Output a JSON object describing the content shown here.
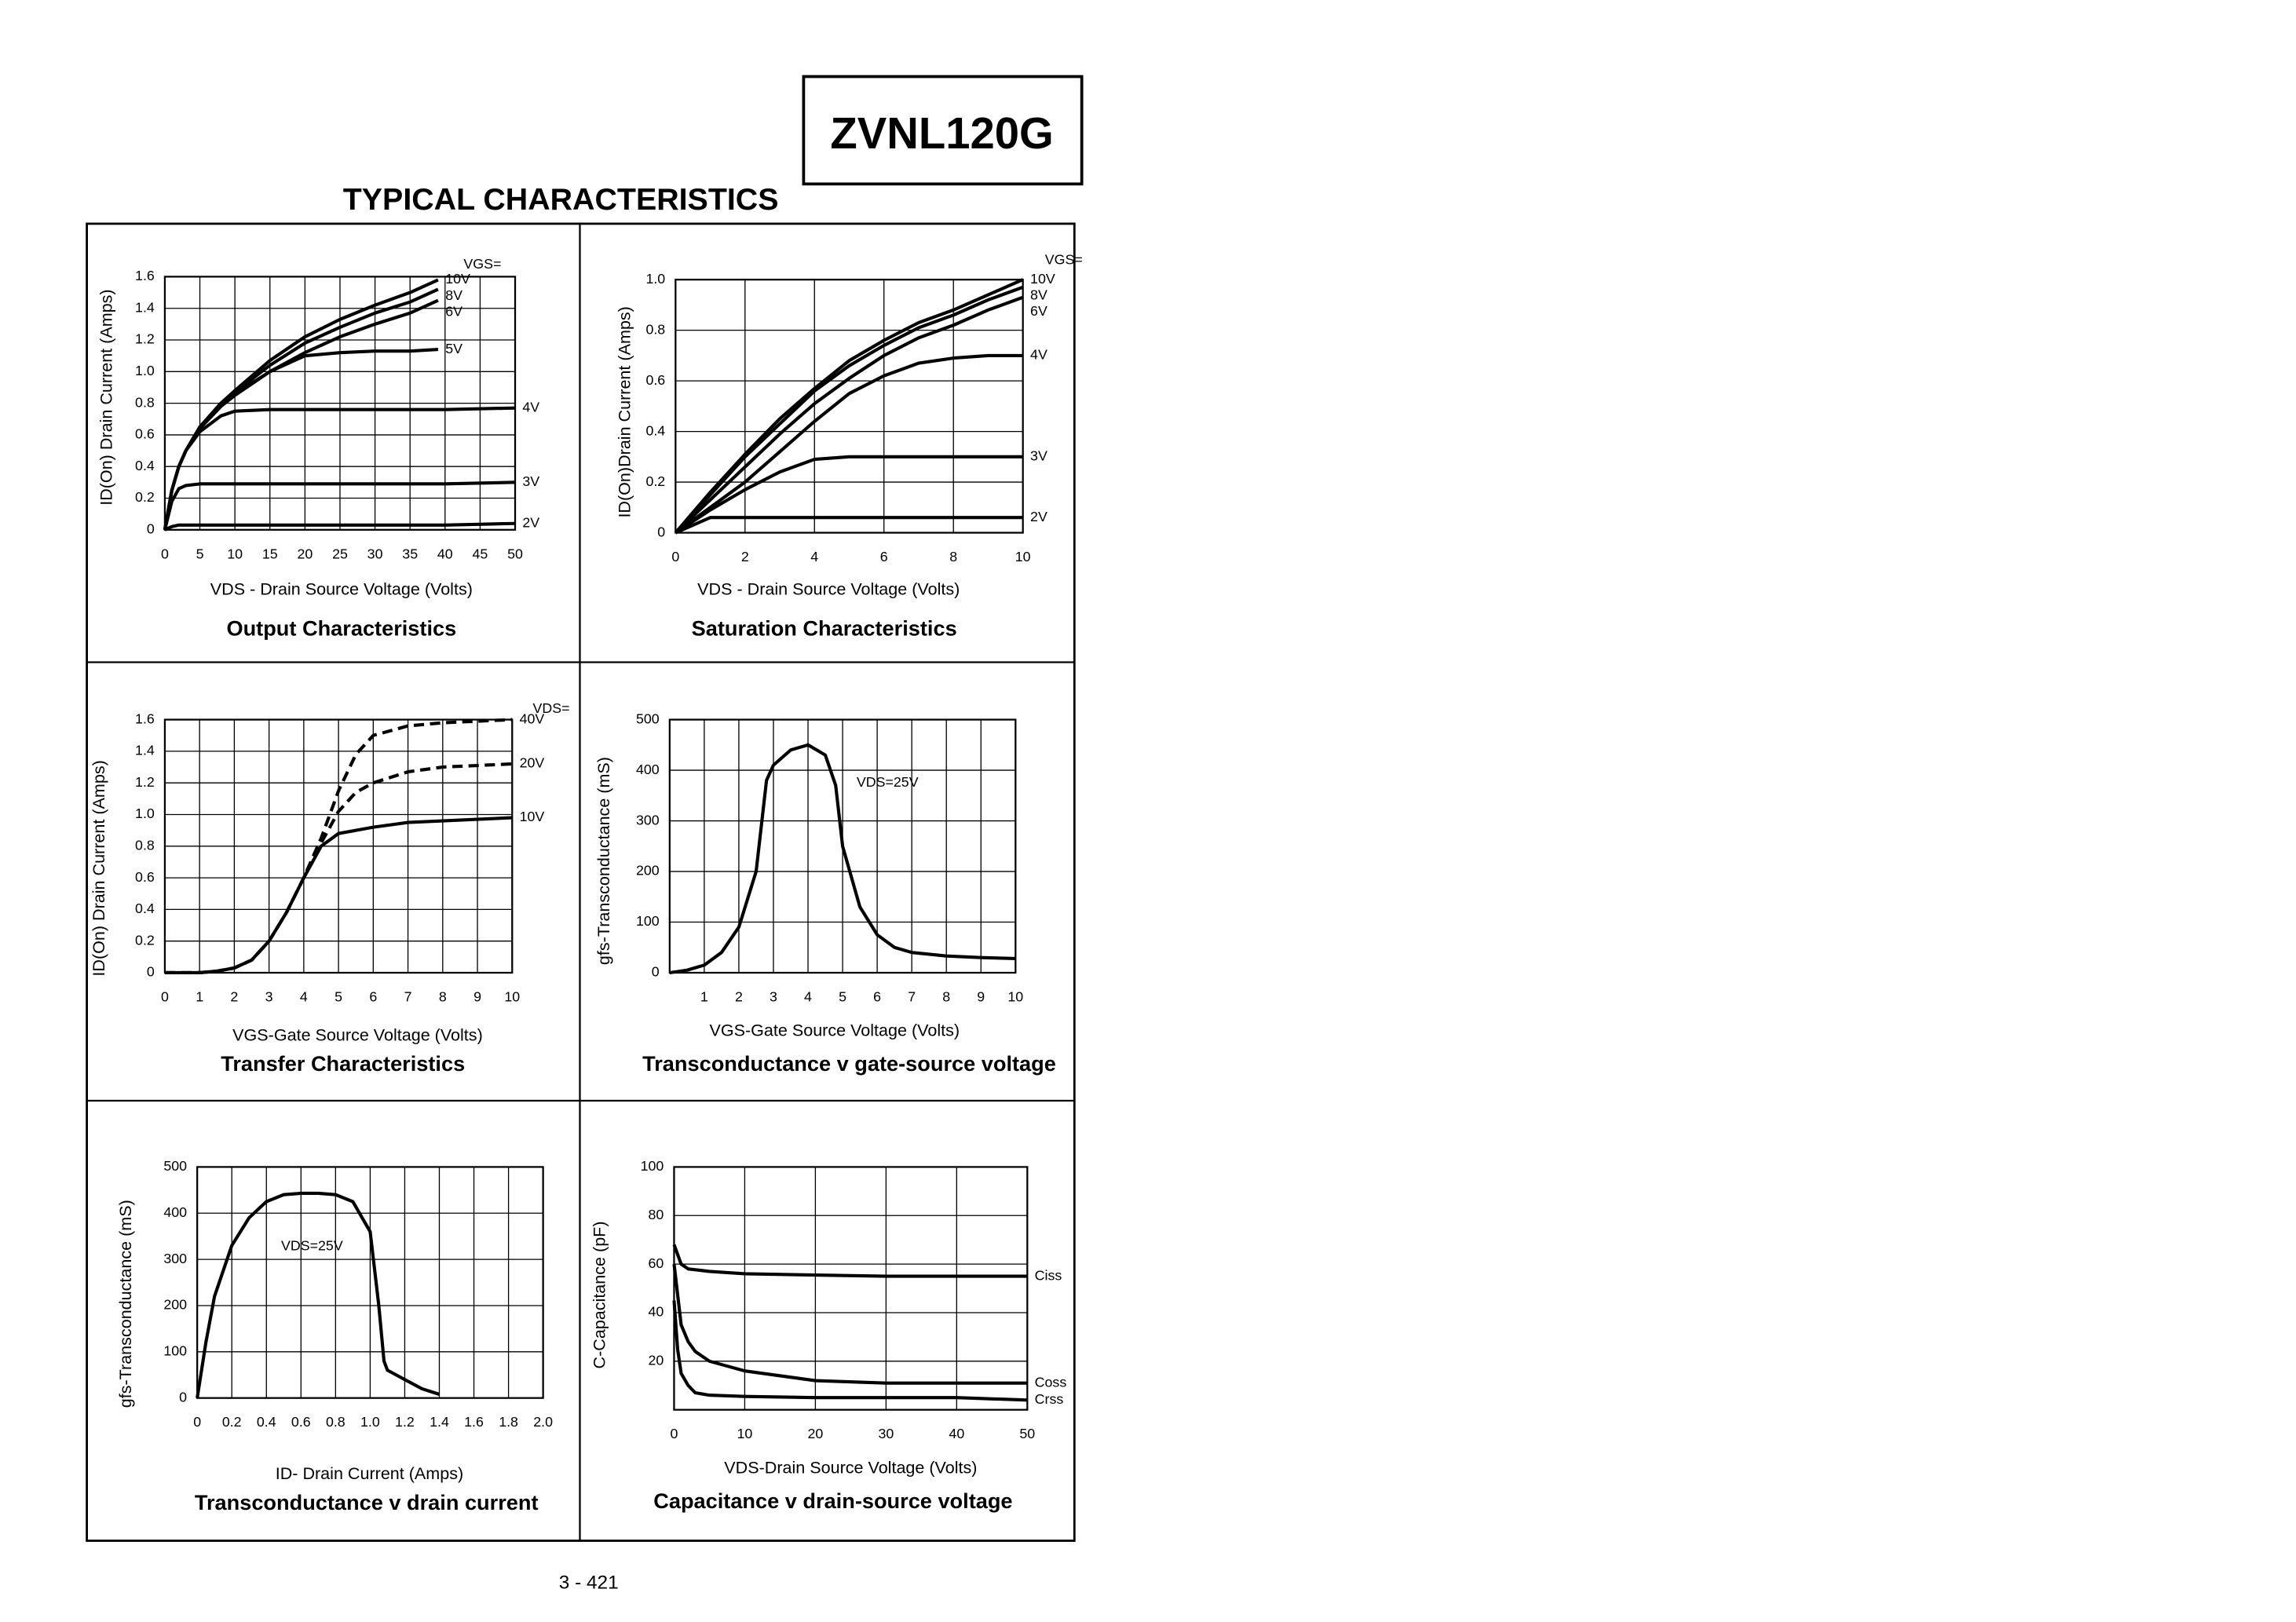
{
  "header": {
    "part": "ZVNL120G",
    "title": "TYPICAL CHARACTERISTICS"
  },
  "footer": {
    "page": "3 - 421"
  },
  "chart_data": [
    {
      "type": "line",
      "title": "Output Characteristics",
      "xlabel": "VDS - Drain Source Voltage (Volts)",
      "ylabel": "ID(On) Drain Current (Amps)",
      "legend_title": "VGS=",
      "xlim": [
        0,
        50
      ],
      "ylim": [
        0,
        1.6
      ],
      "xticks": [
        0,
        5,
        10,
        15,
        20,
        25,
        30,
        35,
        40,
        45,
        50
      ],
      "yticks": [
        0,
        0.2,
        0.4,
        0.6,
        0.8,
        {
          "value": 1,
          "label": "1.0"
        },
        1.2,
        1.4,
        1.6
      ],
      "grid": true,
      "series": [
        {
          "name": "10V",
          "color": "#000000",
          "x": [
            0,
            1,
            2,
            3,
            5,
            8,
            10,
            15,
            20,
            25,
            30,
            35,
            39
          ],
          "values": [
            0,
            0.25,
            0.4,
            0.5,
            0.65,
            0.8,
            0.88,
            1.07,
            1.22,
            1.33,
            1.42,
            1.5,
            1.58
          ]
        },
        {
          "name": "8V",
          "color": "#000000",
          "x": [
            0,
            1,
            2,
            3,
            5,
            8,
            10,
            15,
            20,
            25,
            30,
            35,
            39
          ],
          "values": [
            0,
            0.25,
            0.4,
            0.5,
            0.65,
            0.8,
            0.87,
            1.04,
            1.18,
            1.28,
            1.37,
            1.44,
            1.52
          ]
        },
        {
          "name": "6V",
          "color": "#000000",
          "x": [
            0,
            1,
            2,
            3,
            5,
            8,
            10,
            15,
            20,
            25,
            30,
            35,
            39
          ],
          "values": [
            0,
            0.25,
            0.4,
            0.5,
            0.65,
            0.79,
            0.86,
            1.0,
            1.12,
            1.22,
            1.3,
            1.37,
            1.45
          ]
        },
        {
          "name": "5V",
          "color": "#000000",
          "x": [
            0,
            1,
            2,
            3,
            5,
            8,
            10,
            15,
            20,
            25,
            30,
            35,
            39
          ],
          "values": [
            0,
            0.25,
            0.4,
            0.5,
            0.64,
            0.78,
            0.85,
            1.0,
            1.1,
            1.12,
            1.13,
            1.13,
            1.14
          ]
        },
        {
          "name": "4V",
          "color": "#000000",
          "x": [
            0,
            1,
            2,
            3,
            5,
            8,
            10,
            15,
            20,
            30,
            40,
            50
          ],
          "values": [
            0,
            0.25,
            0.4,
            0.5,
            0.62,
            0.72,
            0.75,
            0.76,
            0.76,
            0.76,
            0.76,
            0.77
          ]
        },
        {
          "name": "3V",
          "color": "#000000",
          "x": [
            0,
            1,
            2,
            3,
            5,
            10,
            20,
            30,
            40,
            50
          ],
          "values": [
            0,
            0.18,
            0.26,
            0.28,
            0.29,
            0.29,
            0.29,
            0.29,
            0.29,
            0.3
          ]
        },
        {
          "name": "2V",
          "color": "#000000",
          "x": [
            0,
            1,
            2,
            5,
            10,
            20,
            30,
            40,
            50
          ],
          "values": [
            0,
            0.02,
            0.03,
            0.03,
            0.03,
            0.03,
            0.03,
            0.03,
            0.04
          ]
        }
      ]
    },
    {
      "type": "line",
      "title": "Saturation Characteristics",
      "xlabel": "VDS - Drain Source Voltage (Volts)",
      "ylabel": "ID(On)Drain Current (Amps)",
      "legend_title": "VGS=",
      "xlim": [
        0,
        10
      ],
      "ylim": [
        0,
        1
      ],
      "xticks": [
        0,
        2,
        4,
        6,
        8,
        10
      ],
      "yticks": [
        0,
        0.2,
        0.4,
        0.6,
        0.8,
        {
          "value": 1,
          "label": "1.0"
        }
      ],
      "grid": true,
      "series": [
        {
          "name": "10V",
          "color": "#000000",
          "x": [
            0,
            1,
            2,
            3,
            4,
            5,
            6,
            7,
            8,
            9,
            10
          ],
          "values": [
            0,
            0.16,
            0.31,
            0.45,
            0.57,
            0.68,
            0.76,
            0.83,
            0.88,
            0.94,
            1.0
          ]
        },
        {
          "name": "8V",
          "color": "#000000",
          "x": [
            0,
            1,
            2,
            3,
            4,
            5,
            6,
            7,
            8,
            9,
            10
          ],
          "values": [
            0,
            0.15,
            0.3,
            0.43,
            0.56,
            0.66,
            0.74,
            0.81,
            0.86,
            0.92,
            0.97
          ]
        },
        {
          "name": "6V",
          "color": "#000000",
          "x": [
            0,
            1,
            2,
            3,
            4,
            5,
            6,
            7,
            8,
            9,
            10
          ],
          "values": [
            0,
            0.13,
            0.26,
            0.39,
            0.51,
            0.61,
            0.7,
            0.77,
            0.82,
            0.88,
            0.93
          ]
        },
        {
          "name": "4V",
          "color": "#000000",
          "x": [
            0,
            1,
            2,
            3,
            4,
            5,
            6,
            7,
            8,
            9,
            10
          ],
          "values": [
            0,
            0.1,
            0.2,
            0.32,
            0.44,
            0.55,
            0.62,
            0.67,
            0.69,
            0.7,
            0.7
          ]
        },
        {
          "name": "3V",
          "color": "#000000",
          "x": [
            0,
            1,
            2,
            3,
            4,
            5,
            6,
            7,
            8,
            9,
            10
          ],
          "values": [
            0,
            0.09,
            0.17,
            0.24,
            0.29,
            0.3,
            0.3,
            0.3,
            0.3,
            0.3,
            0.3
          ]
        },
        {
          "name": "2V",
          "color": "#000000",
          "x": [
            0,
            1,
            2,
            3,
            4,
            5,
            6,
            7,
            8,
            9,
            10
          ],
          "values": [
            0,
            0.06,
            0.06,
            0.06,
            0.06,
            0.06,
            0.06,
            0.06,
            0.06,
            0.06,
            0.06
          ]
        }
      ]
    },
    {
      "type": "line",
      "title": "Transfer Characteristics",
      "xlabel": "VGS-Gate Source Voltage (Volts)",
      "ylabel": "ID(On) Drain Current  (Amps)",
      "legend_title": "VDS=",
      "xlim": [
        0,
        10
      ],
      "ylim": [
        0,
        1.6
      ],
      "xticks": [
        0,
        1,
        2,
        3,
        4,
        5,
        6,
        7,
        8,
        9,
        10
      ],
      "yticks": [
        0,
        0.2,
        0.4,
        0.6,
        0.8,
        {
          "value": 1,
          "label": "1.0"
        },
        1.2,
        1.4,
        1.6
      ],
      "grid": true,
      "series": [
        {
          "name": "40V",
          "color": "#000000",
          "dashed": true,
          "x": [
            0,
            1,
            1.5,
            2,
            2.5,
            3,
            3.5,
            4,
            4.5,
            5,
            5.5,
            6,
            7,
            8,
            9,
            10
          ],
          "values": [
            0,
            0,
            0.01,
            0.03,
            0.08,
            0.2,
            0.38,
            0.6,
            0.85,
            1.15,
            1.38,
            1.5,
            1.56,
            1.58,
            1.59,
            1.6
          ]
        },
        {
          "name": "20V",
          "color": "#000000",
          "dashed": true,
          "x": [
            0,
            1,
            1.5,
            2,
            2.5,
            3,
            3.5,
            4,
            4.5,
            5,
            5.5,
            6,
            7,
            8,
            9,
            10
          ],
          "values": [
            0,
            0,
            0.01,
            0.03,
            0.08,
            0.2,
            0.38,
            0.6,
            0.82,
            1.02,
            1.14,
            1.2,
            1.27,
            1.3,
            1.31,
            1.32
          ]
        },
        {
          "name": "10V",
          "color": "#000000",
          "dashed": false,
          "x": [
            0,
            1,
            1.5,
            2,
            2.5,
            3,
            3.5,
            4,
            4.5,
            5,
            6,
            7,
            8,
            9,
            10
          ],
          "values": [
            0,
            0,
            0.01,
            0.03,
            0.08,
            0.2,
            0.38,
            0.6,
            0.8,
            0.88,
            0.92,
            0.95,
            0.96,
            0.97,
            0.98
          ]
        }
      ]
    },
    {
      "type": "line",
      "title": "Transconductance v gate-source voltage",
      "xlabel": "VGS-Gate Source Voltage  (Volts)",
      "ylabel": "gfs-Transconductance (mS)",
      "xlim": [
        0,
        10
      ],
      "ylim": [
        0,
        500
      ],
      "xticks": [
        1,
        2,
        3,
        4,
        5,
        6,
        7,
        8,
        9,
        10
      ],
      "yticks": [
        0,
        100,
        200,
        300,
        400,
        500
      ],
      "grid": true,
      "series": [
        {
          "name": "VDS=25V",
          "color": "#000000",
          "x": [
            0,
            0.5,
            1,
            1.5,
            2,
            2.5,
            2.8,
            3,
            3.5,
            4,
            4.5,
            4.8,
            5,
            5.5,
            6,
            6.5,
            7,
            8,
            9,
            10
          ],
          "values": [
            0,
            5,
            15,
            40,
            90,
            200,
            380,
            410,
            440,
            450,
            430,
            370,
            250,
            130,
            75,
            50,
            40,
            33,
            30,
            28
          ]
        }
      ]
    },
    {
      "type": "line",
      "title": "Transconductance v drain current",
      "xlabel": "ID- Drain Current (Amps)",
      "ylabel": "gfs-Transconductance (mS)",
      "xlim": [
        0,
        2
      ],
      "ylim": [
        0,
        500
      ],
      "xticks": [
        0,
        0.2,
        0.4,
        0.6,
        0.8,
        {
          "value": 1,
          "label": "1.0"
        },
        1.2,
        1.4,
        1.6,
        1.8,
        {
          "value": 2,
          "label": "2.0"
        }
      ],
      "yticks": [
        0,
        100,
        200,
        300,
        400,
        500
      ],
      "grid": true,
      "series": [
        {
          "name": "VDS=25V",
          "color": "#000000",
          "x": [
            0,
            0.05,
            0.1,
            0.2,
            0.3,
            0.4,
            0.5,
            0.6,
            0.7,
            0.8,
            0.9,
            1.0,
            1.05,
            1.08,
            1.1,
            1.2,
            1.3,
            1.4
          ],
          "values": [
            0,
            120,
            220,
            330,
            390,
            425,
            440,
            443,
            443,
            440,
            425,
            360,
            200,
            80,
            60,
            40,
            20,
            8
          ]
        }
      ]
    },
    {
      "type": "line",
      "title": "Capacitance v drain-source voltage",
      "xlabel": "VDS-Drain Source Voltage (Volts)",
      "ylabel": "C-Capacitance (pF)",
      "xlim": [
        0,
        50
      ],
      "ylim": [
        0,
        100
      ],
      "xticks": [
        0,
        10,
        20,
        30,
        40,
        50
      ],
      "yticks": [
        20,
        40,
        60,
        80,
        100
      ],
      "grid": true,
      "series": [
        {
          "name": "Ciss",
          "color": "#000000",
          "x": [
            0,
            1,
            2,
            5,
            10,
            20,
            30,
            40,
            50
          ],
          "values": [
            68,
            60,
            58,
            57,
            56,
            55.5,
            55,
            55,
            55
          ]
        },
        {
          "name": "Coss",
          "color": "#000000",
          "x": [
            0,
            1,
            2,
            3,
            5,
            10,
            20,
            30,
            40,
            50
          ],
          "values": [
            60,
            35,
            28,
            24,
            20,
            16,
            12,
            11,
            11,
            11
          ]
        },
        {
          "name": "Crss",
          "color": "#000000",
          "x": [
            0,
            0.5,
            1,
            2,
            3,
            5,
            10,
            20,
            30,
            40,
            50
          ],
          "values": [
            45,
            25,
            15,
            10,
            7,
            6,
            5.5,
            5,
            5,
            5,
            4
          ]
        }
      ]
    }
  ]
}
